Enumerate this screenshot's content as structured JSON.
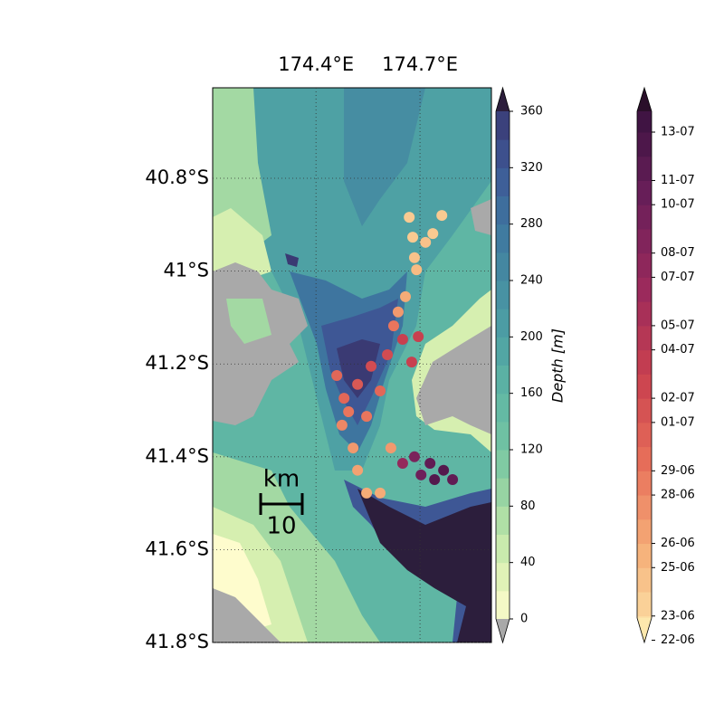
{
  "map": {
    "type": "map",
    "xlim": [
      174.102,
      174.906
    ],
    "ylim": [
      -41.8,
      -40.605
    ],
    "xticks": [
      {
        "value": 174.4,
        "label": "174.4°E"
      },
      {
        "value": 174.7,
        "label": "174.7°E"
      }
    ],
    "yticks": [
      {
        "value": -40.8,
        "label": "40.8°S"
      },
      {
        "value": -41,
        "label": "41°S"
      },
      {
        "value": -41.2,
        "label": "41.2°S"
      },
      {
        "value": -41.4,
        "label": "41.4°S"
      },
      {
        "value": -41.6,
        "label": "41.6°S"
      },
      {
        "value": -41.8,
        "label": "41.8°S"
      }
    ],
    "grid": true,
    "scale_bar": {
      "unit": "km",
      "length": 10
    },
    "track": {
      "lon": [
        174.669,
        174.679,
        174.684,
        174.69,
        174.763,
        174.737,
        174.716,
        174.658,
        174.637,
        174.624,
        174.65,
        174.695,
        174.606,
        174.676,
        174.559,
        174.52,
        174.585,
        174.481,
        174.546,
        174.475,
        174.507,
        174.616,
        174.52,
        174.585,
        174.546,
        174.684,
        174.729,
        174.768,
        174.794,
        174.703,
        174.65,
        174.742,
        174.46,
        174.494
      ],
      "lat": [
        -40.884,
        -40.927,
        -40.971,
        -40.997,
        -40.88,
        -40.919,
        -40.938,
        -41.055,
        -41.088,
        -41.118,
        -41.147,
        -41.141,
        -41.18,
        -41.196,
        -41.205,
        -41.244,
        -41.258,
        -41.274,
        -41.313,
        -41.332,
        -41.381,
        -41.381,
        -41.429,
        -41.478,
        -41.478,
        -41.4,
        -41.414,
        -41.429,
        -41.449,
        -41.439,
        -41.414,
        -41.449,
        -41.225,
        -41.303
      ],
      "date": [
        175,
        175,
        175.5,
        176,
        175,
        175,
        175.5,
        177,
        178,
        180,
        184,
        184,
        183,
        184,
        183,
        182,
        181,
        181,
        180,
        179,
        178,
        178,
        177.5,
        177,
        177,
        190,
        192,
        193,
        192,
        191,
        188,
        193,
        181,
        180
      ]
    }
  },
  "depth_colorbar": {
    "label": "Depth [m]",
    "lim": [
      0,
      360
    ],
    "ticks": [
      0,
      40,
      80,
      120,
      160,
      200,
      240,
      280,
      320,
      360
    ],
    "colors": [
      "#fefccd",
      "#d6efb0",
      "#a3d9a3",
      "#74c5a3",
      "#5fb6a4",
      "#4ea1a4",
      "#468da2",
      "#3e759f",
      "#3e5795",
      "#3a3a73"
    ],
    "under_color": "#a9a9a9",
    "over_color": "#2c1e3c"
  },
  "date_colorbar": {
    "lim": [
      173,
      194.86
    ],
    "ticks": [
      {
        "value": 173,
        "label": "22-06"
      },
      {
        "value": 174,
        "label": "23-06"
      },
      {
        "value": 176,
        "label": "25-06"
      },
      {
        "value": 177,
        "label": "26-06"
      },
      {
        "value": 179,
        "label": "28-06"
      },
      {
        "value": 180,
        "label": "29-06"
      },
      {
        "value": 182,
        "label": "01-07"
      },
      {
        "value": 183,
        "label": "02-07"
      },
      {
        "value": 185,
        "label": "04-07"
      },
      {
        "value": 186,
        "label": "05-07"
      },
      {
        "value": 188,
        "label": "07-07"
      },
      {
        "value": 189,
        "label": "08-07"
      },
      {
        "value": 191,
        "label": "10-07"
      },
      {
        "value": 192,
        "label": "11-07"
      },
      {
        "value": 194,
        "label": "13-07"
      }
    ],
    "colors": [
      "#fde8ad",
      "#f6b17a",
      "#e8705a",
      "#c9404f",
      "#9a2a5c",
      "#6b1f5a",
      "#3b1340"
    ],
    "over_color": "#2a0f2a"
  }
}
